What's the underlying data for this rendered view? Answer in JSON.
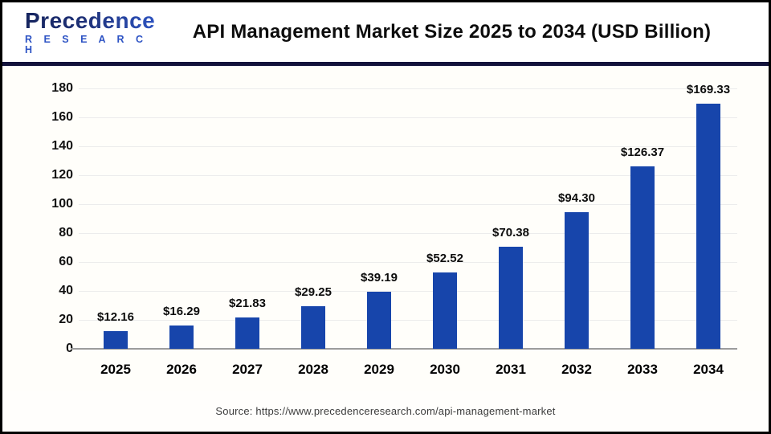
{
  "header": {
    "logo": {
      "brand": "Precedence",
      "sub": "R E S E A R C H"
    },
    "title": "API Management Market Size 2025 to 2034 (USD Billion)"
  },
  "chart_data": {
    "type": "bar",
    "title": "API Management Market Size 2025 to 2034 (USD Billion)",
    "categories": [
      "2025",
      "2026",
      "2027",
      "2028",
      "2029",
      "2030",
      "2031",
      "2032",
      "2033",
      "2034"
    ],
    "values": [
      12.16,
      16.29,
      21.83,
      29.25,
      39.19,
      52.52,
      70.38,
      94.3,
      126.37,
      169.33
    ],
    "value_labels": [
      "$12.16",
      "$16.29",
      "$21.83",
      "$29.25",
      "$39.19",
      "$52.52",
      "$70.38",
      "$94.30",
      "$126.37",
      "$169.33"
    ],
    "unit": "USD Billion",
    "xlabel": "",
    "ylabel": "",
    "ylim": [
      0,
      180
    ],
    "yticks": [
      0,
      20,
      40,
      60,
      80,
      100,
      120,
      140,
      160,
      180
    ],
    "grid": true,
    "legend_position": "none",
    "bar_color": "#1745ab"
  },
  "footer": {
    "source": "Source: https://www.precedenceresearch.com/api-management-market"
  }
}
